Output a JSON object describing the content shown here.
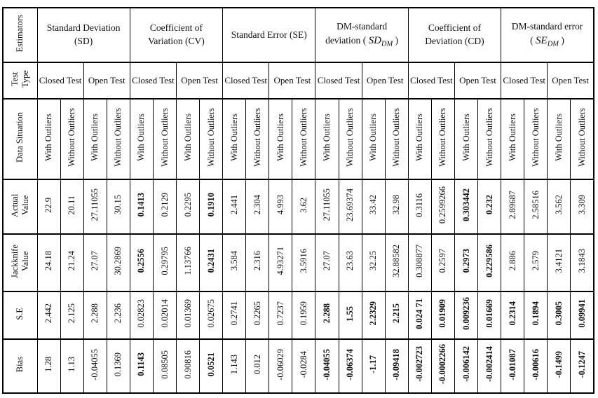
{
  "table": {
    "row_labels": {
      "estimators": "Estimators",
      "test_type": "Test Type",
      "data_situation": "Data Situation",
      "actual_value": "Actual Value",
      "jackknife_value": "Jackknife Value",
      "se": "S.E",
      "bias": "Bias"
    },
    "estimator_headers": [
      {
        "label": "Standard Deviation (SD)"
      },
      {
        "label": "Coefficient of Variation (CV)"
      },
      {
        "label": "Standard Error (SE)"
      },
      {
        "label_before": "DM-standard deviation",
        "paren_open": "( ",
        "math_base": "SD",
        "math_sub": "DM",
        "paren_close": " )"
      },
      {
        "label": "Coefficient of Deviation (CD)"
      },
      {
        "label_before": "DM-standard error",
        "paren_open": "( ",
        "math_base": "SE",
        "math_sub": "DM",
        "paren_close": " )"
      }
    ],
    "test_types": [
      "Closed Test",
      "Open Test"
    ],
    "data_situations": [
      "With Outliers",
      "Without Outliers"
    ],
    "data_rows": [
      {
        "key": "actual",
        "values": [
          "22.9",
          "20.11",
          "27.11055",
          "30.15",
          "0.1413",
          "0.2129",
          "0.2295",
          "0.1910",
          "2.441",
          "2.304",
          "4.993",
          "3.62",
          "27.11055",
          "23.69374",
          "33.42",
          "32.98",
          "0.3116",
          "0.2599266",
          "0.303442",
          "0.232",
          "2.89687",
          "2.58516",
          "3.562",
          "3.309"
        ],
        "bold": [
          0,
          0,
          0,
          0,
          1,
          0,
          0,
          1,
          0,
          0,
          0,
          0,
          0,
          0,
          0,
          0,
          0,
          0,
          1,
          1,
          0,
          0,
          0,
          0
        ]
      },
      {
        "key": "jackknife",
        "values": [
          "24.18",
          "21.24",
          "27.07",
          "30.2869",
          "0.2556",
          "0.29795",
          "1.13766",
          "0.2431",
          "3.584",
          "2.316",
          "4.93271",
          "3.5916",
          "27.07",
          "23.63",
          "32.25",
          "32.88582",
          "0.308877",
          "0.2597",
          "0.2973",
          "0.229586",
          "2.886",
          "2.579",
          "3.4121",
          "3.1843"
        ],
        "bold": [
          0,
          0,
          0,
          0,
          1,
          0,
          0,
          1,
          0,
          0,
          0,
          0,
          0,
          0,
          0,
          0,
          0,
          0,
          1,
          1,
          0,
          0,
          0,
          0
        ]
      },
      {
        "key": "se",
        "values": [
          "2.442",
          "2.125",
          "2.288",
          "2.236",
          "0.02823",
          "0.02014",
          "0.01369",
          "0.02675",
          "0.2741",
          "0.2265",
          "0.7237",
          "0.1959",
          "2.288",
          "1.55",
          "2.2329",
          "2.215",
          "0.024 71",
          "0.01909",
          "0.009236",
          "0.01669",
          "0.2314",
          "0.1894",
          "0.3005",
          "0.09941"
        ],
        "bold": [
          0,
          0,
          0,
          0,
          0,
          0,
          0,
          0,
          0,
          0,
          0,
          0,
          1,
          1,
          1,
          1,
          1,
          1,
          1,
          1,
          1,
          1,
          1,
          1
        ]
      },
      {
        "key": "bias",
        "values": [
          "1.28",
          "1.13",
          "-0.04055",
          "0.1369",
          "0.1143",
          "0.08505",
          "0.90816",
          "0.0521",
          "1.143",
          "0.012",
          "-0.06029",
          "-0.0284",
          "-0.04055",
          "-0.06374",
          "-1.17",
          "-0.09418",
          "-0.002723",
          "-0.0002266",
          "-0.006142",
          "-0.002414",
          "-0.01087",
          "-0.00616",
          "-0.1499",
          "-0.1247"
        ],
        "bold": [
          0,
          0,
          0,
          0,
          1,
          0,
          0,
          1,
          0,
          0,
          0,
          0,
          1,
          1,
          1,
          1,
          1,
          1,
          1,
          1,
          1,
          1,
          1,
          1
        ]
      }
    ]
  }
}
